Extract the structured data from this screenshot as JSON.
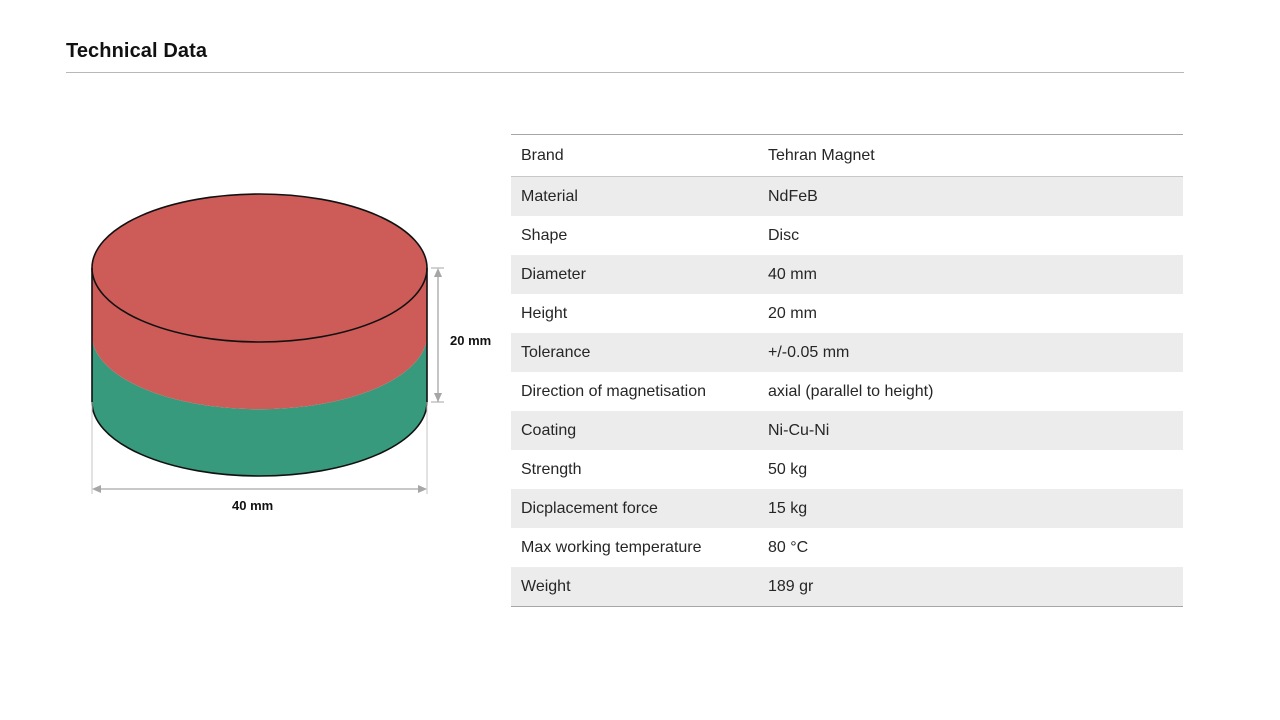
{
  "page": {
    "title": "Technical Data"
  },
  "figure": {
    "height_label": "20 mm",
    "diameter_label": "40 mm",
    "colors": {
      "top_half": "#cd5b58",
      "bottom_half": "#389a7c",
      "outline": "#111111",
      "dimension_line": "#a6a6a6"
    }
  },
  "specs": {
    "rows": [
      {
        "label": "Brand",
        "value": "Tehran Magnet"
      },
      {
        "label": "Material",
        "value": "NdFeB"
      },
      {
        "label": "Shape",
        "value": "Disc"
      },
      {
        "label": "Diameter",
        "value": "40 mm"
      },
      {
        "label": "Height",
        "value": "20 mm"
      },
      {
        "label": "Tolerance",
        "value": "+/-0.05 mm"
      },
      {
        "label": "Direction of magnetisation",
        "value": "axial (parallel to height)"
      },
      {
        "label": "Coating",
        "value": "Ni-Cu-Ni"
      },
      {
        "label": "Strength",
        "value": "50 kg"
      },
      {
        "label": "Dicplacement force",
        "value": "15 kg"
      },
      {
        "label": "Max working temperature",
        "value": "80 °C"
      },
      {
        "label": "Weight",
        "value": "189 gr"
      }
    ]
  }
}
